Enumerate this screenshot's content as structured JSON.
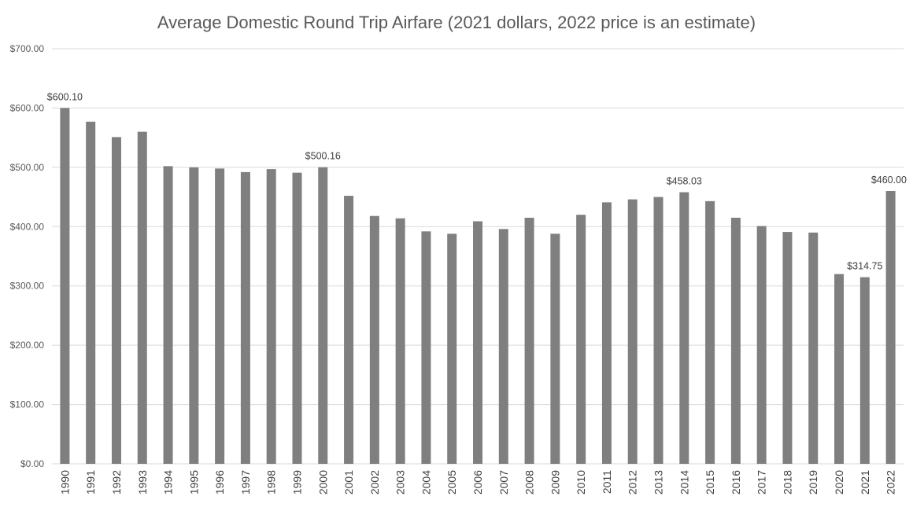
{
  "chart_data": {
    "type": "bar",
    "title": "Average Domestic Round Trip Airfare (2021 dollars, 2022 price is an estimate)",
    "xlabel": "",
    "ylabel": "",
    "ylim": [
      0,
      700
    ],
    "yticks": [
      0,
      100,
      200,
      300,
      400,
      500,
      600,
      700
    ],
    "ytick_labels": [
      "$0.00",
      "$100.00",
      "$200.00",
      "$300.00",
      "$400.00",
      "$500.00",
      "$600.00",
      "$700.00"
    ],
    "grid": true,
    "legend": "none",
    "bar_color": "#7f7f7f",
    "categories": [
      "1990",
      "1991",
      "1992",
      "1993",
      "1994",
      "1995",
      "1996",
      "1997",
      "1998",
      "1999",
      "2000",
      "2001",
      "2002",
      "2003",
      "2004",
      "2005",
      "2006",
      "2007",
      "2008",
      "2009",
      "2010",
      "2011",
      "2012",
      "2013",
      "2014",
      "2015",
      "2016",
      "2017",
      "2018",
      "2019",
      "2020",
      "2021",
      "2022"
    ],
    "values": [
      600.1,
      577,
      551,
      560,
      502,
      500,
      498,
      492,
      497,
      491,
      500.16,
      452,
      418,
      414,
      392,
      388,
      409,
      396,
      415,
      388,
      420,
      441,
      446,
      450,
      458.03,
      443,
      415,
      401,
      391,
      390,
      320,
      314.75,
      460.0
    ],
    "data_labels": [
      {
        "category": "1990",
        "text": "$600.10"
      },
      {
        "category": "2000",
        "text": "$500.16"
      },
      {
        "category": "2014",
        "text": "$458.03"
      },
      {
        "category": "2021",
        "text": "$314.75"
      },
      {
        "category": "2022",
        "text": "$460.00"
      }
    ]
  }
}
